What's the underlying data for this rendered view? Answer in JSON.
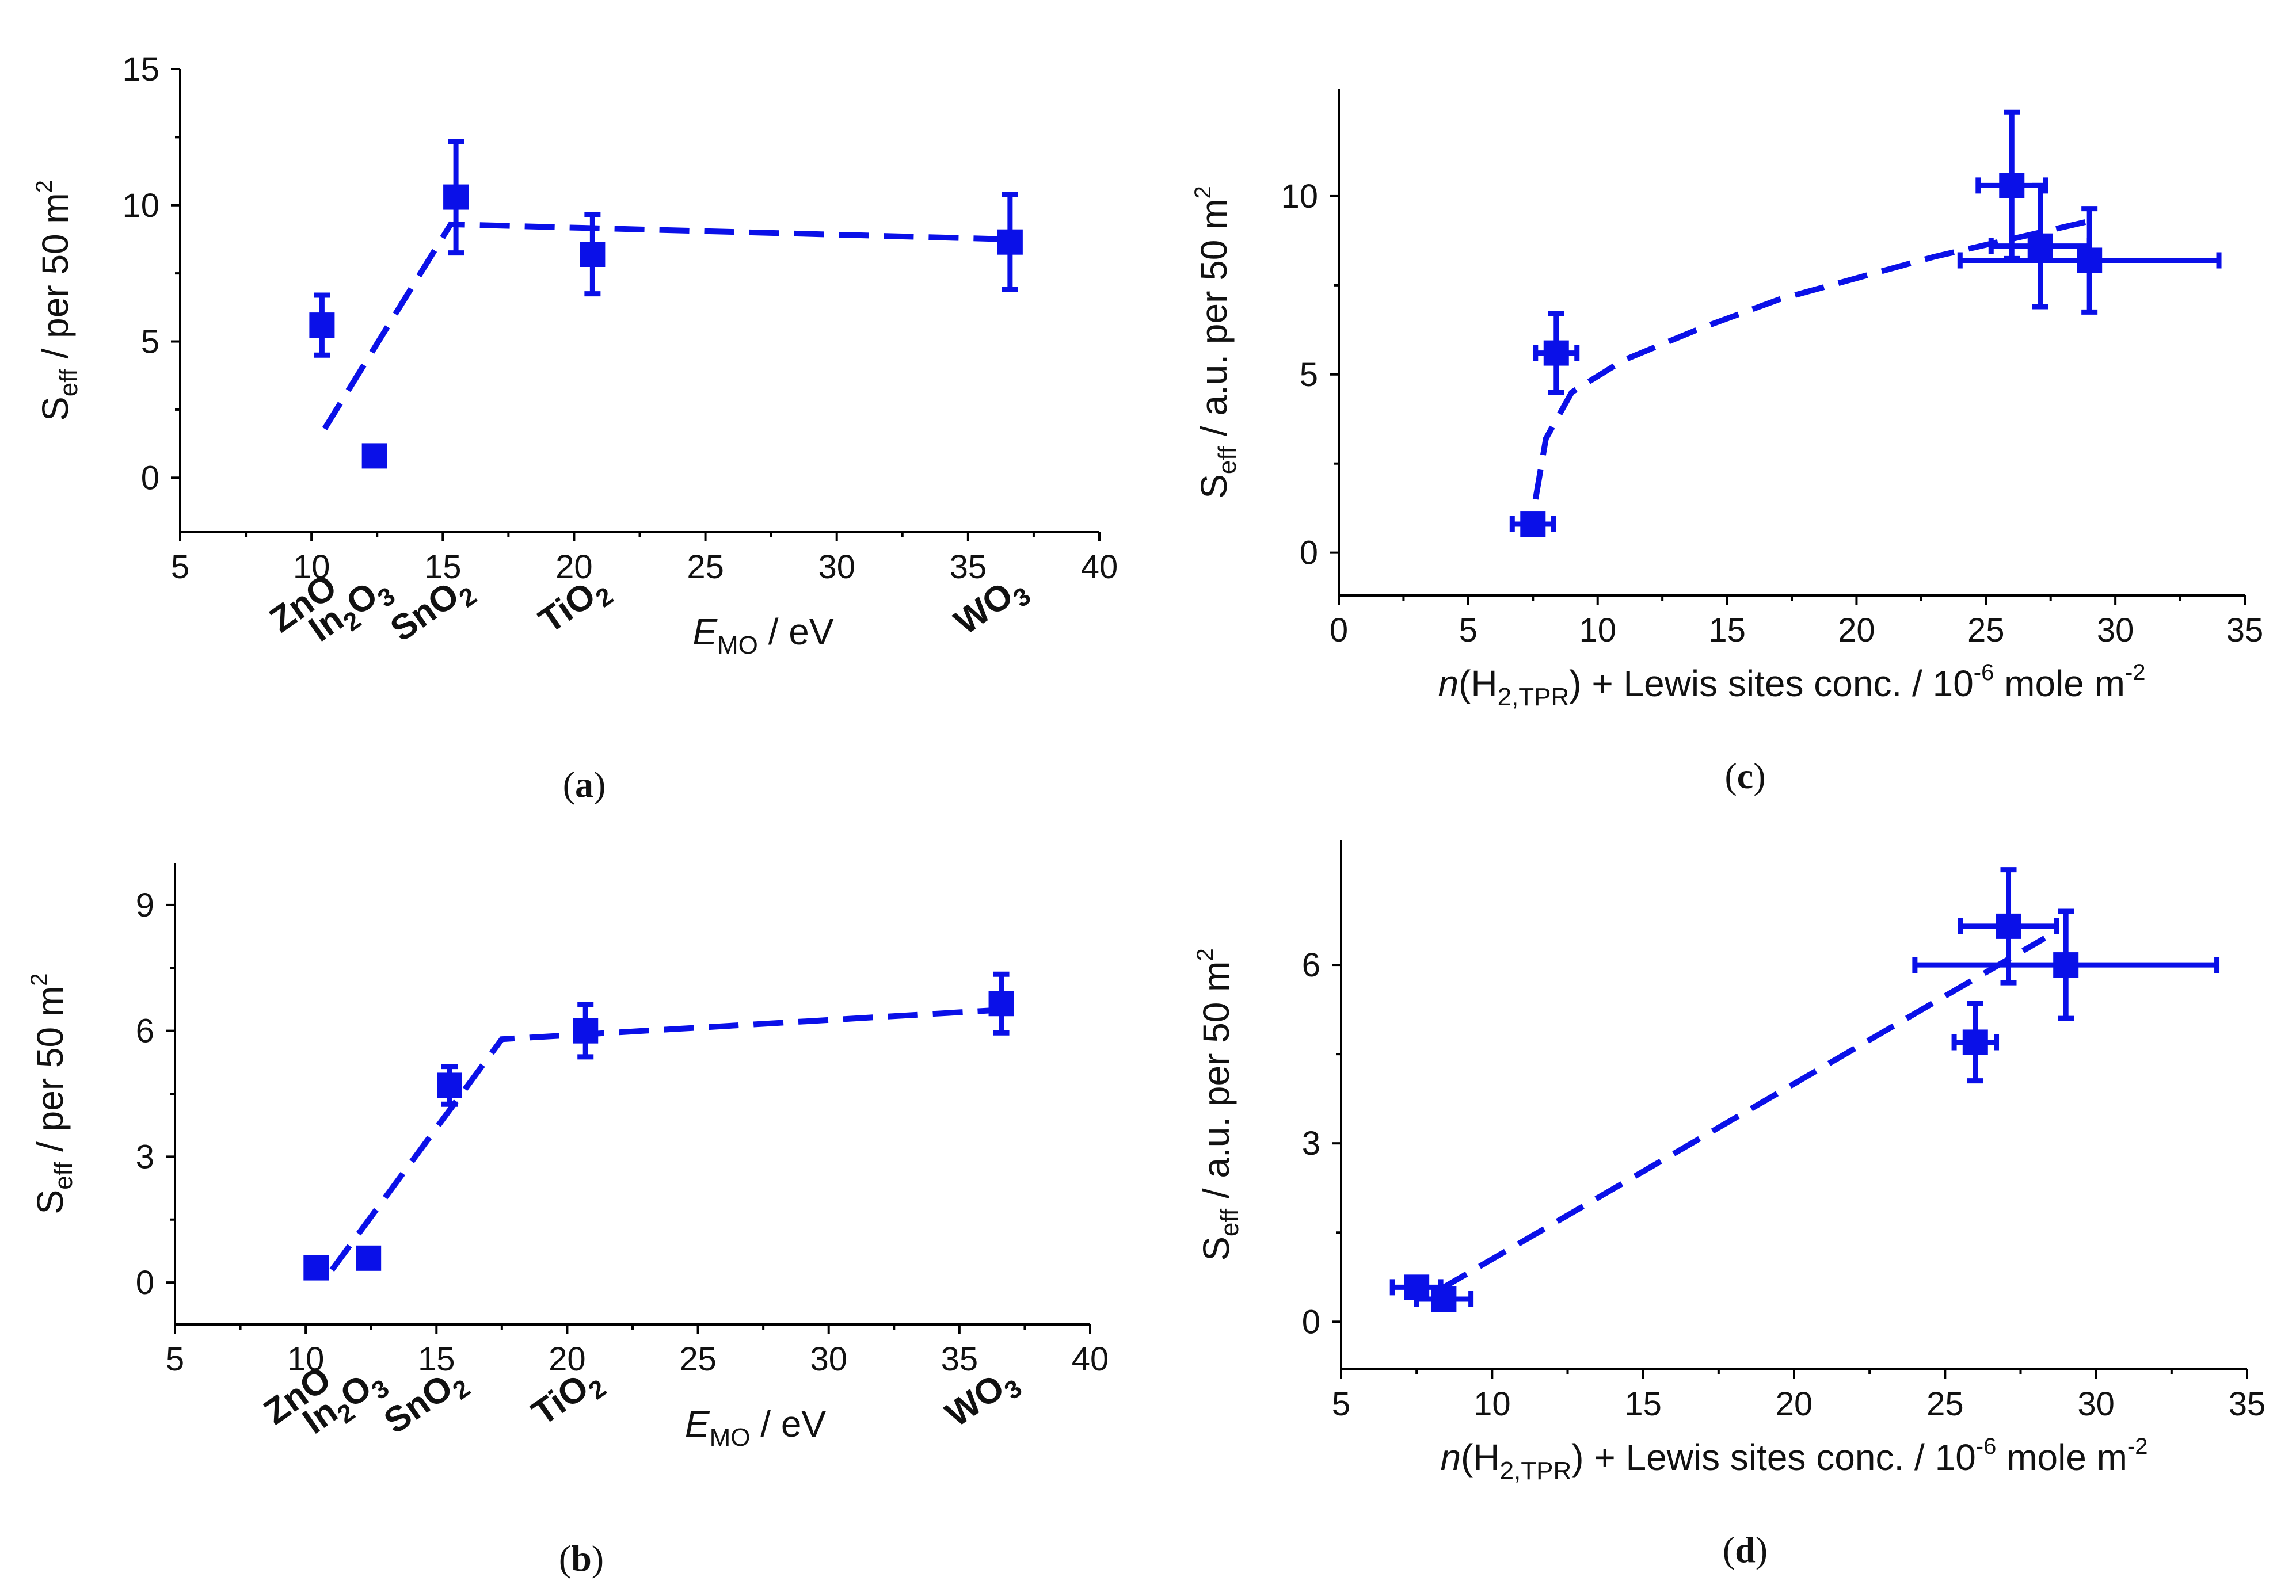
{
  "colors": {
    "series": "#0a10e8",
    "axis": "#000000"
  },
  "chart_data": [
    {
      "id": "a",
      "type": "scatter",
      "panel_label": "a",
      "ylabel": {
        "main": "S",
        "sub": "eff",
        "rest": " / per 50 m",
        "sup": "2"
      },
      "xlabel": {
        "main": "E",
        "sub": "MO",
        "rest": " / eV"
      },
      "xlim": [
        5,
        40
      ],
      "ylim": [
        -2,
        15
      ],
      "xticks": [
        5,
        10,
        15,
        20,
        25,
        30,
        35,
        40
      ],
      "yticks": [
        0,
        5,
        10,
        15
      ],
      "compounds": [
        {
          "x": 10.4,
          "main": "ZnO",
          "sub": ""
        },
        {
          "x": 12.4,
          "main": "In",
          "sub": "2",
          "main2": "O",
          "sub2": "3"
        },
        {
          "x": 15.5,
          "main": "SnO",
          "sub": "2"
        },
        {
          "x": 20.7,
          "main": "TiO",
          "sub": "2"
        },
        {
          "x": 36.6,
          "main": "WO",
          "sub": "3"
        }
      ],
      "points": [
        {
          "x": 10.4,
          "y": 5.6,
          "yerr": 1.1
        },
        {
          "x": 12.4,
          "y": 0.8,
          "yerr": 0.25
        },
        {
          "x": 15.5,
          "y": 10.3,
          "yerr": 2.05
        },
        {
          "x": 20.7,
          "y": 8.2,
          "yerr": 1.45
        },
        {
          "x": 36.6,
          "y": 8.65,
          "yerr": 1.75
        }
      ],
      "fit": [
        [
          10.5,
          1.8
        ],
        [
          15.3,
          9.3
        ],
        [
          36.6,
          8.75
        ]
      ]
    },
    {
      "id": "b",
      "type": "scatter",
      "panel_label": "b",
      "ylabel": {
        "main": "S",
        "sub": "eff",
        "rest": " / per 50 m",
        "sup": "2"
      },
      "xlabel": {
        "main": "E",
        "sub": "MO",
        "rest": " / eV"
      },
      "xlim": [
        5,
        40
      ],
      "ylim": [
        -1,
        10
      ],
      "xticks": [
        5,
        10,
        15,
        20,
        25,
        30,
        35,
        40
      ],
      "yticks": [
        0,
        3,
        6,
        9
      ],
      "compounds": [
        {
          "x": 10.4,
          "main": "ZnO",
          "sub": ""
        },
        {
          "x": 12.4,
          "main": "In",
          "sub": "2",
          "main2": "O",
          "sub2": "3"
        },
        {
          "x": 15.5,
          "main": "SnO",
          "sub": "2"
        },
        {
          "x": 20.7,
          "main": "TiO",
          "sub": "2"
        },
        {
          "x": 36.6,
          "main": "WO",
          "sub": "3"
        }
      ],
      "points": [
        {
          "x": 10.4,
          "y": 0.35,
          "yerr": 0.12
        },
        {
          "x": 12.4,
          "y": 0.58,
          "yerr": 0.1
        },
        {
          "x": 15.5,
          "y": 4.7,
          "yerr": 0.45
        },
        {
          "x": 20.7,
          "y": 6.0,
          "yerr": 0.62
        },
        {
          "x": 36.6,
          "y": 6.65,
          "yerr": 0.7
        }
      ],
      "fit": [
        [
          11.0,
          0.3
        ],
        [
          17.5,
          5.8
        ],
        [
          36.6,
          6.5
        ]
      ]
    },
    {
      "id": "c",
      "type": "scatter",
      "panel_label": "c",
      "ylabel": {
        "main": "S",
        "sub": "eff",
        "rest": " / a.u. per 50 m",
        "sup": "2"
      },
      "xlabel": {
        "pre": "n",
        "open": "(H",
        "sub": "2,TPR",
        "rest": ") + Lewis sites conc. / 10",
        "sup": "-6",
        "rest2": " mole m",
        "sup2": "-2"
      },
      "xlim": [
        0,
        35
      ],
      "ylim": [
        -1.2,
        13
      ],
      "xticks": [
        0,
        5,
        10,
        15,
        20,
        25,
        30,
        35
      ],
      "yticks": [
        0,
        5,
        10
      ],
      "points": [
        {
          "x": 7.5,
          "y": 0.8,
          "yerr": 0.2,
          "xerr": 0.8
        },
        {
          "x": 8.4,
          "y": 5.6,
          "yerr": 1.1,
          "xerr": 0.8
        },
        {
          "x": 26.0,
          "y": 10.3,
          "yerr": 2.05,
          "xerr": 1.3
        },
        {
          "x": 27.1,
          "y": 8.6,
          "yerr": 1.7,
          "xerr": 1.9
        },
        {
          "x": 29.0,
          "y": 8.2,
          "yerr": 1.45,
          "xerr": 5.0
        }
      ],
      "fit": [
        [
          7.6,
          1.5
        ],
        [
          8.0,
          3.2
        ],
        [
          9.0,
          4.5
        ],
        [
          11,
          5.4
        ],
        [
          14,
          6.3
        ],
        [
          17,
          7.1
        ],
        [
          20,
          7.7
        ],
        [
          23,
          8.3
        ],
        [
          26,
          8.8
        ],
        [
          29,
          9.3
        ]
      ]
    },
    {
      "id": "d",
      "type": "scatter",
      "panel_label": "d",
      "ylabel": {
        "main": "S",
        "sub": "eff",
        "rest": " / a.u. per 50 m",
        "sup": "2"
      },
      "xlabel": {
        "pre": "n",
        "open": "(H",
        "sub": "2,TPR",
        "rest": ") + Lewis sites conc. / 10",
        "sup": "-6",
        "rest2": " mole m",
        "sup2": "-2"
      },
      "xlim": [
        5,
        35
      ],
      "ylim": [
        -0.8,
        8.1
      ],
      "xticks": [
        5,
        10,
        15,
        20,
        25,
        30,
        35
      ],
      "yticks": [
        0,
        3,
        6
      ],
      "points": [
        {
          "x": 7.5,
          "y": 0.58,
          "yerr": 0.15,
          "xerr": 0.8
        },
        {
          "x": 8.4,
          "y": 0.38,
          "yerr": 0.15,
          "xerr": 0.9
        },
        {
          "x": 26.0,
          "y": 4.7,
          "yerr": 0.65,
          "xerr": 0.7
        },
        {
          "x": 27.1,
          "y": 6.65,
          "yerr": 0.95,
          "xerr": 1.6
        },
        {
          "x": 29.0,
          "y": 6.0,
          "yerr": 0.9,
          "xerr": 5.0
        }
      ],
      "fit": [
        [
          8.3,
          0.55
        ],
        [
          28.3,
          6.45
        ]
      ]
    }
  ]
}
